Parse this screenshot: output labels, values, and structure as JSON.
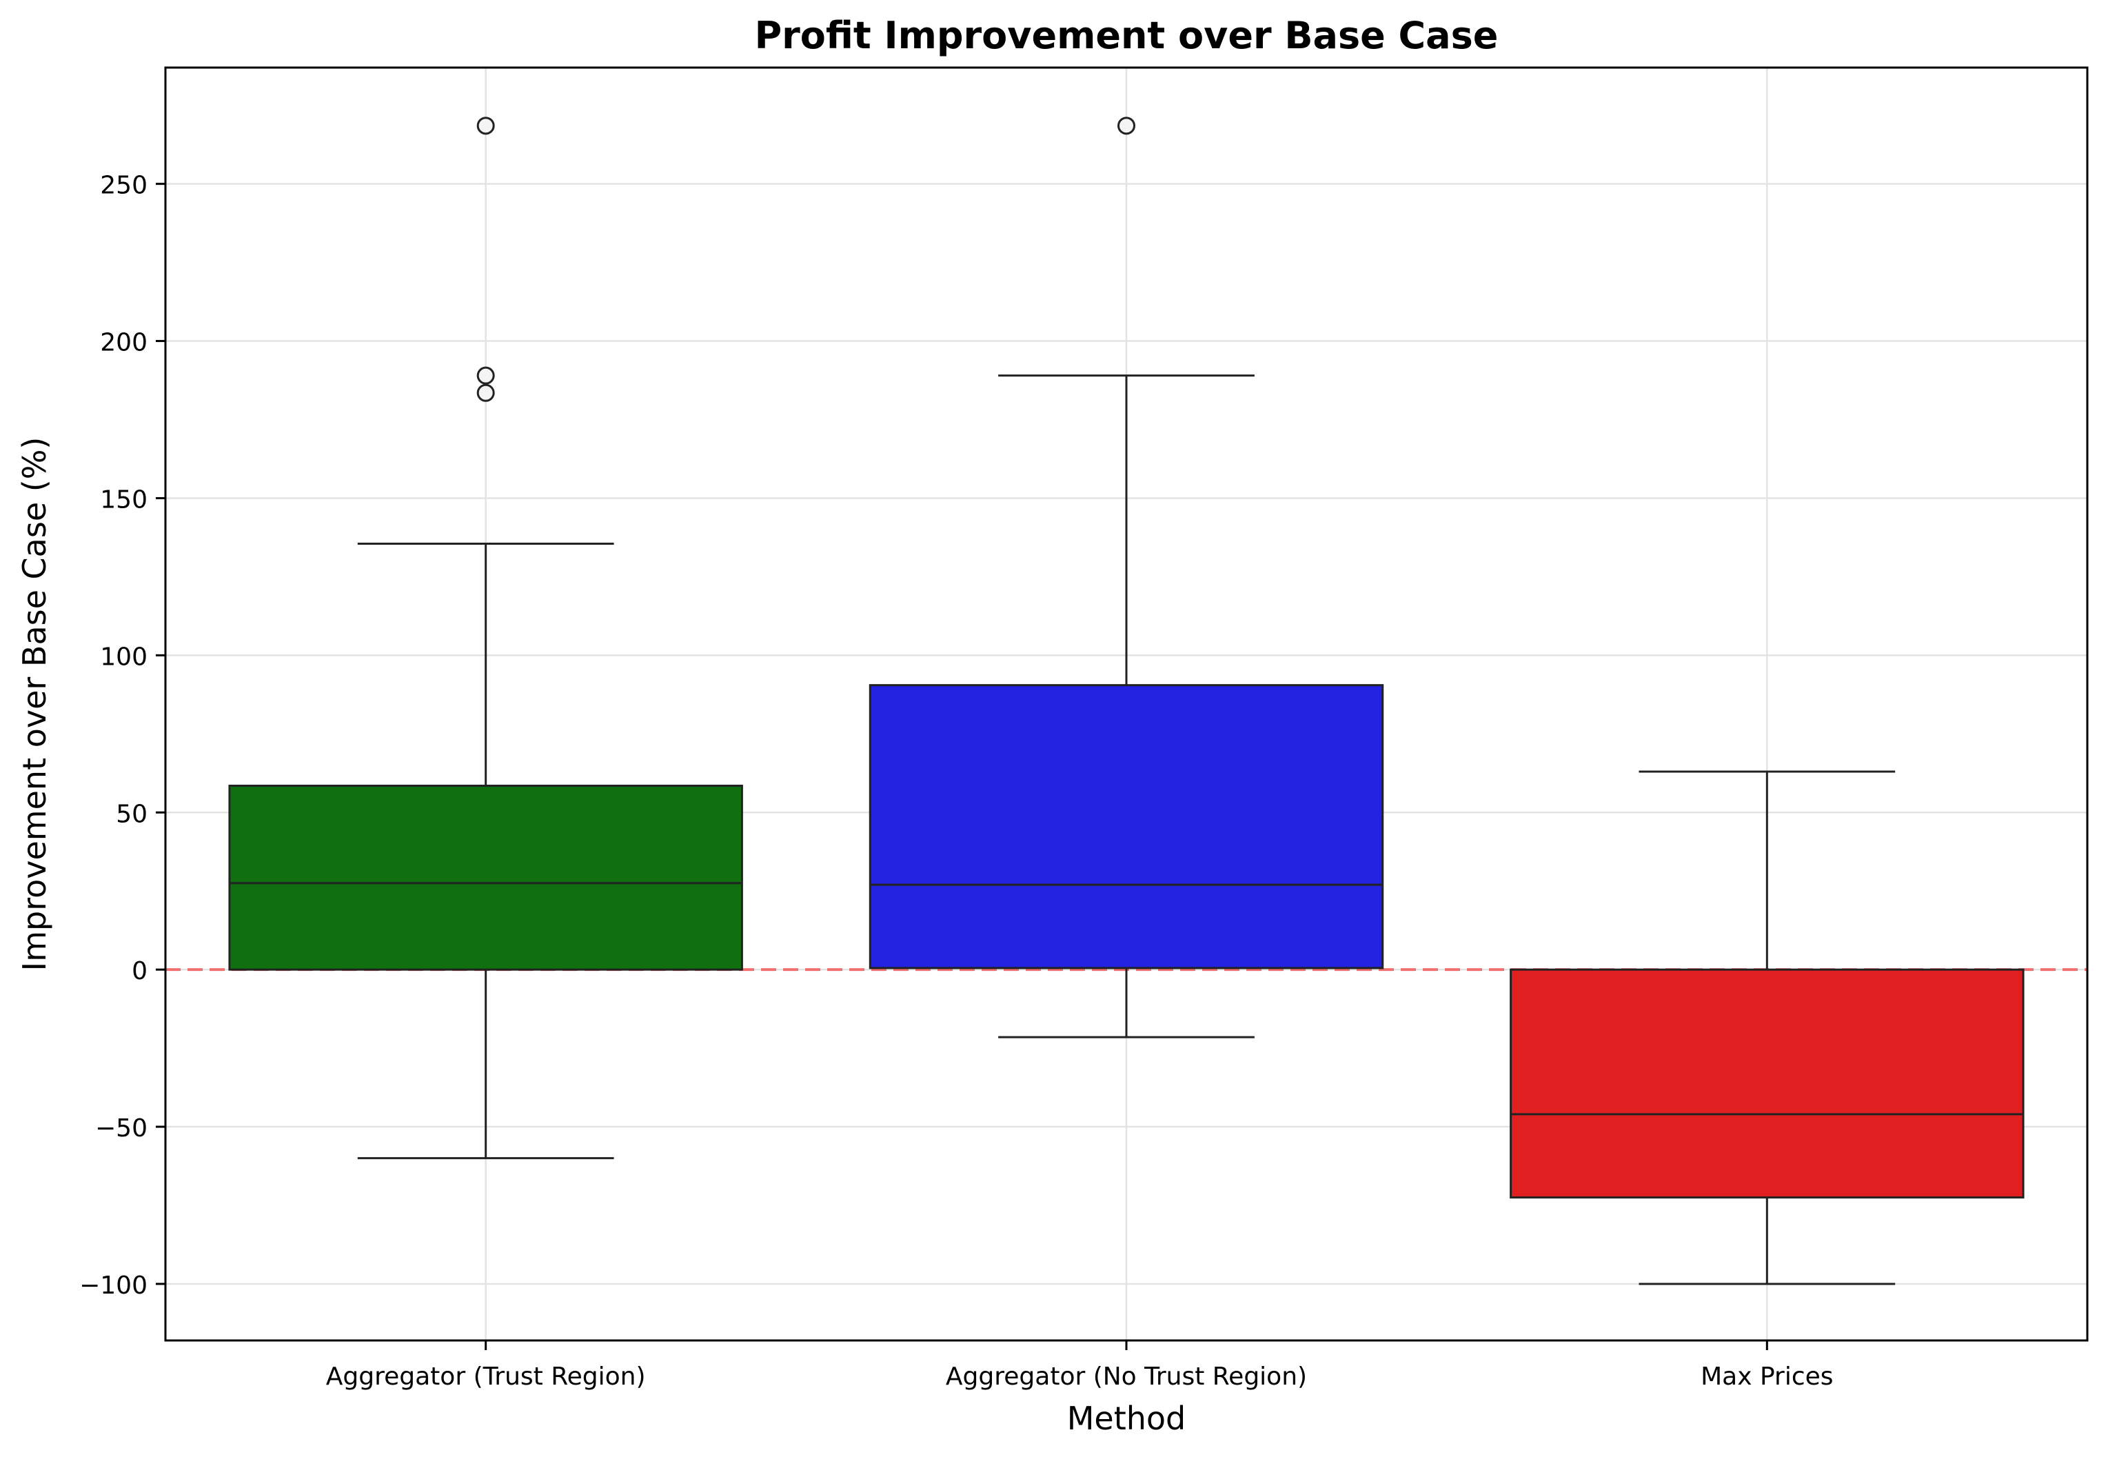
{
  "chart_data": {
    "type": "box",
    "title": "Profit Improvement over Base Case",
    "xlabel": "Method",
    "ylabel": "Improvement over Base Case (%)",
    "ylim": [
      -118,
      287
    ],
    "yticks": [
      -100,
      -50,
      0,
      50,
      100,
      150,
      200,
      250
    ],
    "ytick_labels": [
      "−100",
      "−50",
      "0",
      "50",
      "100",
      "150",
      "200",
      "250"
    ],
    "grid": true,
    "reference_line": {
      "y": 0,
      "color": "#f07070",
      "style": "dashed"
    },
    "categories": [
      "Aggregator (Trust Region)",
      "Aggregator (No Trust Region)",
      "Max Prices"
    ],
    "boxes": [
      {
        "category": "Aggregator (Trust Region)",
        "color": "#107010",
        "whisker_low": -60,
        "q1": 0,
        "median": 27.5,
        "q3": 58.5,
        "whisker_high": 135.5,
        "outliers": [
          268.5,
          189,
          183.5
        ]
      },
      {
        "category": "Aggregator (No Trust Region)",
        "color": "#2222e0",
        "whisker_low": -21.5,
        "q1": 0.5,
        "median": 27,
        "q3": 90.5,
        "whisker_high": 189,
        "outliers": [
          268.5
        ]
      },
      {
        "category": "Max Prices",
        "color": "#e02020",
        "whisker_low": -100,
        "q1": -72.5,
        "median": -46,
        "q3": 0,
        "whisker_high": 63,
        "outliers": []
      }
    ]
  }
}
